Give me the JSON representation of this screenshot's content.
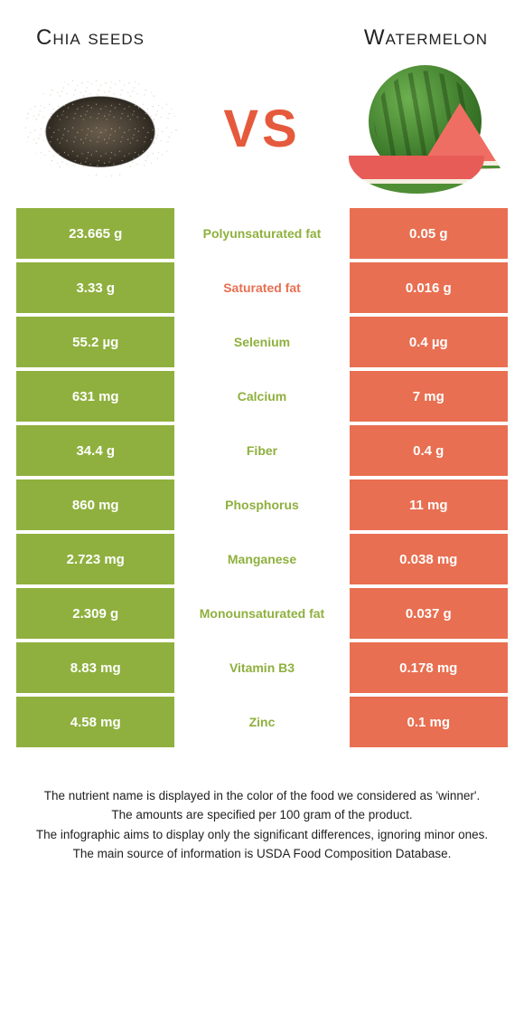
{
  "title_left": "Chia seeds",
  "title_right": "Watermelon",
  "vs_label": "VS",
  "colors": {
    "left": "#8fb03e",
    "right": "#e86f51",
    "mid_bg": "#ffffff"
  },
  "rows": [
    {
      "left": "23.665 g",
      "label": "Polyunsaturated fat",
      "right": "0.05 g",
      "winner": "left"
    },
    {
      "left": "3.33 g",
      "label": "Saturated fat",
      "right": "0.016 g",
      "winner": "right"
    },
    {
      "left": "55.2 µg",
      "label": "Selenium",
      "right": "0.4 µg",
      "winner": "left"
    },
    {
      "left": "631 mg",
      "label": "Calcium",
      "right": "7 mg",
      "winner": "left"
    },
    {
      "left": "34.4 g",
      "label": "Fiber",
      "right": "0.4 g",
      "winner": "left"
    },
    {
      "left": "860 mg",
      "label": "Phosphorus",
      "right": "11 mg",
      "winner": "left"
    },
    {
      "left": "2.723 mg",
      "label": "Manganese",
      "right": "0.038 mg",
      "winner": "left"
    },
    {
      "left": "2.309 g",
      "label": "Monounsaturated fat",
      "right": "0.037 g",
      "winner": "left"
    },
    {
      "left": "8.83 mg",
      "label": "Vitamin B3",
      "right": "0.178 mg",
      "winner": "left"
    },
    {
      "left": "4.58 mg",
      "label": "Zinc",
      "right": "0.1 mg",
      "winner": "left"
    }
  ],
  "footer": [
    "The nutrient name is displayed in the color of the food we considered as 'winner'.",
    "The amounts are specified per 100 gram of the product.",
    "The infographic aims to display only the significant differences, ignoring minor ones.",
    "The main source of information is USDA Food Composition Database."
  ]
}
